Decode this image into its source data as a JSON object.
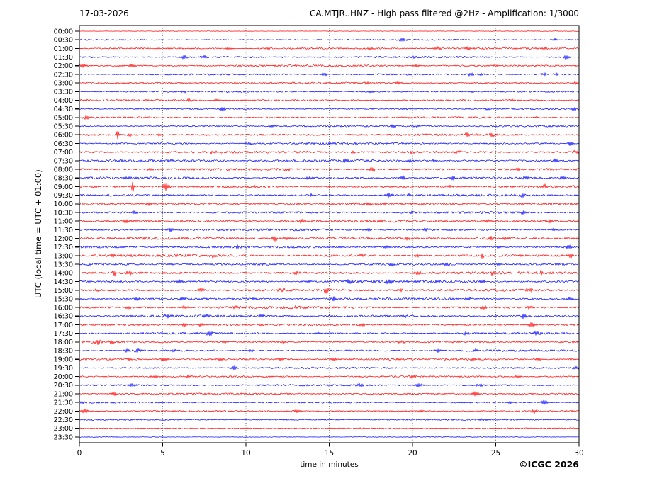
{
  "header": {
    "date": "17-03-2026",
    "title": "CA.MTJR..HNZ - High pass filtered @2Hz - Amplification: 1/3000"
  },
  "footer": {
    "copyright": "©ICGC 2026"
  },
  "axes": {
    "x_label": "time in minutes",
    "y_label": "UTC (local time = UTC + 01:00)",
    "x_ticks": [
      "0",
      "5",
      "10",
      "15",
      "20",
      "25",
      "30"
    ]
  },
  "colors": {
    "trace_red": "#ff0000",
    "trace_blue": "#0000ff",
    "grid": "#444444",
    "frame": "#000000",
    "background": "#ffffff"
  },
  "chart_data": {
    "type": "line",
    "subtype": "helicorder-seismogram",
    "x_range": [
      0,
      30
    ],
    "x_gridlines": [
      5,
      10,
      15,
      20,
      25
    ],
    "minutes_per_row": 30,
    "grid_style": "dotted",
    "legend": "none",
    "rows": [
      {
        "time": "00:00",
        "color": "red",
        "noise": 0.35,
        "events": []
      },
      {
        "time": "00:30",
        "color": "blue",
        "noise": 0.8,
        "events": [
          [
            19.4,
            3.2
          ],
          [
            28.6,
            1.8
          ]
        ]
      },
      {
        "time": "01:00",
        "color": "red",
        "noise": 1.1,
        "events": [
          [
            9,
            1.6
          ],
          [
            11.3,
            1.6
          ],
          [
            17.5,
            1.8
          ],
          [
            21.5,
            2.2
          ],
          [
            23.3,
            2.2
          ],
          [
            28,
            1.5
          ]
        ]
      },
      {
        "time": "01:30",
        "color": "blue",
        "noise": 1.1,
        "events": [
          [
            6.3,
            2.8
          ],
          [
            7.5,
            1.8
          ],
          [
            20.1,
            1.6
          ],
          [
            29.2,
            2.8
          ]
        ]
      },
      {
        "time": "02:00",
        "color": "red",
        "noise": 1.2,
        "events": [
          [
            0.2,
            2.8
          ],
          [
            3.2,
            2.8
          ],
          [
            13,
            1.5
          ],
          [
            20.3,
            1.8
          ],
          [
            25,
            1.5
          ]
        ]
      },
      {
        "time": "02:30",
        "color": "blue",
        "noise": 1.1,
        "events": [
          [
            14.7,
            2.2
          ],
          [
            23.5,
            2.2
          ],
          [
            24.1,
            1.8
          ],
          [
            27.9,
            1.8
          ],
          [
            28.6,
            1.6
          ]
        ]
      },
      {
        "time": "03:00",
        "color": "red",
        "noise": 1.1,
        "events": [
          [
            17.3,
            1.8
          ],
          [
            19.2,
            1.6
          ],
          [
            29.8,
            1.8
          ]
        ]
      },
      {
        "time": "03:30",
        "color": "blue",
        "noise": 1.0,
        "events": [
          [
            6.3,
            1.6
          ],
          [
            17.5,
            1.4
          ],
          [
            23.5,
            1.4
          ]
        ]
      },
      {
        "time": "04:00",
        "color": "red",
        "noise": 1.1,
        "events": [
          [
            6.6,
            2.2
          ],
          [
            8.2,
            2.0
          ],
          [
            26,
            1.4
          ]
        ]
      },
      {
        "time": "04:30",
        "color": "blue",
        "noise": 1.0,
        "events": [
          [
            8.6,
            3.2
          ],
          [
            19.5,
            1.4
          ],
          [
            24.5,
            1.4
          ],
          [
            29.7,
            1.8
          ]
        ]
      },
      {
        "time": "05:00",
        "color": "red",
        "noise": 1.1,
        "events": [
          [
            0.4,
            2.2
          ],
          [
            19.8,
            1.6
          ],
          [
            27.5,
            1.4
          ]
        ]
      },
      {
        "time": "05:30",
        "color": "blue",
        "noise": 1.1,
        "events": [
          [
            11.6,
            1.8
          ],
          [
            18.8,
            1.6
          ],
          [
            20.3,
            1.6
          ]
        ]
      },
      {
        "time": "06:00",
        "color": "red",
        "noise": 1.3,
        "events": [
          [
            2.3,
            5.0
          ],
          [
            3.1,
            2.2
          ],
          [
            4.8,
            2.2
          ],
          [
            23.3,
            2.0
          ],
          [
            24.8,
            2.2
          ]
        ]
      },
      {
        "time": "06:30",
        "color": "blue",
        "noise": 1.2,
        "events": [
          [
            10.2,
            1.8
          ],
          [
            29.5,
            2.8
          ]
        ]
      },
      {
        "time": "07:00",
        "color": "red",
        "noise": 1.4,
        "events": [
          [
            8,
            2.2
          ],
          [
            16.4,
            1.8
          ],
          [
            20,
            2.0
          ],
          [
            22.7,
            1.8
          ],
          [
            29.8,
            2.2
          ]
        ]
      },
      {
        "time": "07:30",
        "color": "blue",
        "noise": 1.5,
        "events": [
          [
            5.5,
            1.8
          ],
          [
            16,
            2.0
          ],
          [
            19.8,
            2.0
          ],
          [
            21.3,
            1.8
          ],
          [
            28.6,
            3.0
          ]
        ]
      },
      {
        "time": "08:00",
        "color": "red",
        "noise": 1.4,
        "events": [
          [
            4.2,
            1.8
          ],
          [
            12.5,
            1.8
          ],
          [
            17.6,
            3.2
          ],
          [
            26.3,
            2.0
          ]
        ]
      },
      {
        "time": "08:30",
        "color": "blue",
        "noise": 1.5,
        "events": [
          [
            13.8,
            2.2
          ],
          [
            19.4,
            2.8
          ],
          [
            22.4,
            3.2
          ],
          [
            26.8,
            2.0
          ],
          [
            29,
            2.2
          ]
        ]
      },
      {
        "time": "09:00",
        "color": "red",
        "noise": 1.5,
        "events": [
          [
            3.2,
            7.5
          ],
          [
            5.2,
            4.6
          ],
          [
            10.5,
            2.2
          ],
          [
            22.2,
            2.2
          ],
          [
            28,
            2.2
          ]
        ]
      },
      {
        "time": "09:30",
        "color": "blue",
        "noise": 1.4,
        "events": [
          [
            14,
            2.0
          ],
          [
            18.6,
            3.2
          ],
          [
            19.8,
            2.2
          ],
          [
            26.6,
            2.0
          ]
        ]
      },
      {
        "time": "10:00",
        "color": "red",
        "noise": 1.5,
        "events": [
          [
            4.2,
            2.2
          ],
          [
            16.5,
            2.0
          ],
          [
            17.3,
            2.0
          ],
          [
            18.4,
            1.8
          ]
        ]
      },
      {
        "time": "10:30",
        "color": "blue",
        "noise": 1.4,
        "events": [
          [
            3.3,
            2.0
          ],
          [
            20,
            1.8
          ],
          [
            26.6,
            2.2
          ]
        ]
      },
      {
        "time": "11:00",
        "color": "red",
        "noise": 1.5,
        "events": [
          [
            2.8,
            2.2
          ],
          [
            13.4,
            2.8
          ],
          [
            18,
            1.8
          ],
          [
            24.5,
            2.0
          ],
          [
            28.3,
            2.2
          ]
        ]
      },
      {
        "time": "11:30",
        "color": "blue",
        "noise": 1.4,
        "events": [
          [
            5.5,
            2.8
          ],
          [
            17.3,
            2.0
          ],
          [
            20.8,
            2.5
          ],
          [
            28.5,
            2.0
          ]
        ]
      },
      {
        "time": "12:00",
        "color": "red",
        "noise": 1.6,
        "events": [
          [
            11.7,
            3.8
          ],
          [
            12.5,
            2.2
          ],
          [
            19.7,
            2.0
          ],
          [
            24.7,
            3.2
          ],
          [
            25.7,
            2.2
          ]
        ]
      },
      {
        "time": "12:30",
        "color": "blue",
        "noise": 1.5,
        "events": [
          [
            9.5,
            2.2
          ],
          [
            18.4,
            2.2
          ],
          [
            25.2,
            1.8
          ],
          [
            29.4,
            3.2
          ]
        ]
      },
      {
        "time": "13:00",
        "color": "red",
        "noise": 1.6,
        "events": [
          [
            2,
            2.0
          ],
          [
            8,
            2.2
          ],
          [
            17,
            2.2
          ],
          [
            20.3,
            2.2
          ],
          [
            24.2,
            2.5
          ],
          [
            29.5,
            2.2
          ]
        ]
      },
      {
        "time": "13:30",
        "color": "blue",
        "noise": 1.4,
        "events": [
          [
            5.5,
            1.8
          ],
          [
            11,
            2.0
          ],
          [
            18.7,
            2.8
          ],
          [
            22,
            1.8
          ],
          [
            25.2,
            2.0
          ]
        ]
      },
      {
        "time": "14:00",
        "color": "red",
        "noise": 1.6,
        "events": [
          [
            2.1,
            5.5
          ],
          [
            3,
            2.2
          ],
          [
            13,
            2.2
          ],
          [
            20.3,
            3.0
          ],
          [
            24.8,
            2.8
          ],
          [
            27.7,
            2.5
          ]
        ]
      },
      {
        "time": "14:30",
        "color": "blue",
        "noise": 1.5,
        "events": [
          [
            6,
            2.0
          ],
          [
            13.8,
            2.2
          ],
          [
            16.2,
            2.8
          ],
          [
            18.6,
            3.2
          ],
          [
            21.5,
            2.2
          ],
          [
            24.2,
            2.2
          ]
        ]
      },
      {
        "time": "15:00",
        "color": "red",
        "noise": 1.5,
        "events": [
          [
            1,
            2.0
          ],
          [
            7.3,
            2.5
          ],
          [
            12.2,
            2.2
          ],
          [
            14.8,
            3.2
          ],
          [
            19.3,
            2.2
          ],
          [
            27,
            2.2
          ]
        ]
      },
      {
        "time": "15:30",
        "color": "blue",
        "noise": 1.4,
        "events": [
          [
            3.5,
            2.0
          ],
          [
            6.2,
            2.2
          ],
          [
            10.5,
            2.2
          ],
          [
            15.3,
            2.5
          ],
          [
            23.4,
            2.2
          ],
          [
            29.5,
            2.2
          ]
        ]
      },
      {
        "time": "16:00",
        "color": "red",
        "noise": 1.5,
        "events": [
          [
            3,
            2.0
          ],
          [
            6.3,
            2.5
          ],
          [
            9.5,
            2.2
          ],
          [
            13,
            2.5
          ],
          [
            24.3,
            2.5
          ],
          [
            27,
            2.0
          ]
        ]
      },
      {
        "time": "16:30",
        "color": "blue",
        "noise": 1.4,
        "events": [
          [
            5.3,
            2.2
          ],
          [
            7.7,
            2.5
          ],
          [
            10.9,
            2.2
          ],
          [
            19.5,
            2.0
          ],
          [
            26.7,
            3.8
          ]
        ]
      },
      {
        "time": "17:00",
        "color": "red",
        "noise": 1.4,
        "events": [
          [
            6.3,
            3.0
          ],
          [
            7.3,
            2.2
          ],
          [
            17,
            2.0
          ],
          [
            27.2,
            3.2
          ]
        ]
      },
      {
        "time": "17:30",
        "color": "blue",
        "noise": 1.3,
        "events": [
          [
            7.8,
            3.5
          ],
          [
            14.2,
            1.8
          ],
          [
            23.2,
            2.2
          ],
          [
            27.5,
            2.0
          ]
        ]
      },
      {
        "time": "18:00",
        "color": "red",
        "noise": 1.3,
        "events": [
          [
            1.1,
            2.8
          ],
          [
            1.9,
            2.5
          ],
          [
            8.7,
            2.0
          ],
          [
            12.3,
            1.8
          ],
          [
            19.3,
            2.0
          ]
        ]
      },
      {
        "time": "18:30",
        "color": "blue",
        "noise": 1.2,
        "events": [
          [
            2.9,
            2.2
          ],
          [
            3.5,
            2.5
          ],
          [
            5.6,
            2.0
          ],
          [
            10.3,
            2.2
          ],
          [
            21.5,
            2.0
          ],
          [
            23.8,
            2.2
          ]
        ]
      },
      {
        "time": "19:00",
        "color": "red",
        "noise": 1.2,
        "events": [
          [
            3,
            1.8
          ],
          [
            5.1,
            3.2
          ],
          [
            8.5,
            2.0
          ],
          [
            12.1,
            2.2
          ],
          [
            15.3,
            2.0
          ],
          [
            23.6,
            2.2
          ],
          [
            27.5,
            2.0
          ]
        ]
      },
      {
        "time": "19:30",
        "color": "blue",
        "noise": 1.1,
        "events": [
          [
            9.3,
            2.8
          ],
          [
            29.8,
            2.5
          ]
        ]
      },
      {
        "time": "20:00",
        "color": "red",
        "noise": 1.1,
        "events": [
          [
            4.5,
            2.0
          ],
          [
            6.5,
            1.8
          ],
          [
            20,
            2.5
          ],
          [
            26.3,
            2.0
          ]
        ]
      },
      {
        "time": "20:30",
        "color": "blue",
        "noise": 1.1,
        "events": [
          [
            3.2,
            2.5
          ],
          [
            16.8,
            2.0
          ],
          [
            20.4,
            2.8
          ],
          [
            24,
            2.0
          ]
        ]
      },
      {
        "time": "21:00",
        "color": "red",
        "noise": 1.1,
        "events": [
          [
            2.1,
            2.5
          ],
          [
            23.8,
            3.8
          ]
        ]
      },
      {
        "time": "21:30",
        "color": "blue",
        "noise": 1.0,
        "events": [
          [
            0.1,
            2.5
          ],
          [
            25.8,
            2.0
          ],
          [
            27.9,
            3.5
          ]
        ]
      },
      {
        "time": "22:00",
        "color": "red",
        "noise": 1.0,
        "events": [
          [
            0.3,
            3.0
          ],
          [
            13.1,
            2.5
          ],
          [
            20.5,
            1.8
          ],
          [
            27.3,
            2.8
          ]
        ]
      },
      {
        "time": "22:30",
        "color": "blue",
        "noise": 0.9,
        "events": [
          [
            24.2,
            1.6
          ]
        ]
      },
      {
        "time": "23:00",
        "color": "red",
        "noise": 0.8,
        "events": [
          [
            10,
            1.2
          ],
          [
            17,
            1.2
          ]
        ]
      },
      {
        "time": "23:30",
        "color": "blue",
        "noise": 0.45,
        "events": []
      }
    ]
  }
}
